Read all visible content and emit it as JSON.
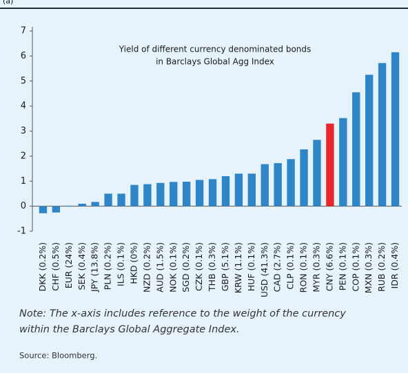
{
  "chart_data": {
    "type": "bar",
    "label": "(a)",
    "annotation": [
      "Yield of different currency denominated bonds",
      "in Barclays Global Agg Index"
    ],
    "categories": [
      "DKK (0.2%)",
      "CHF (0.5%)",
      "EUR (24%)",
      "SEK (0.4%)",
      "JPY (13.8%)",
      "PLN (0.2%)",
      "ILS (0.1%)",
      "HKD (0%)",
      "NZD (0.2%)",
      "AUD (1.5%)",
      "NOK (0.1%)",
      "SGD (0.2%)",
      "CZK (0.1%)",
      "THB (0.3%)",
      "GBP (5.1%)",
      "KRW (1.1%)",
      "HUF (0.1%)",
      "USD (41.3%)",
      "CAD (2.7%)",
      "CLP (0.1%)",
      "RON (0.1%)",
      "MYR (0.3%)",
      "CNY (6.6%)",
      "PEN (0.1%)",
      "COP (0.1%)",
      "MXN (0.3%)",
      "RUB (0.2%)",
      "IDR (0.4%)"
    ],
    "values": [
      -0.28,
      -0.25,
      0.02,
      0.1,
      0.17,
      0.5,
      0.5,
      0.85,
      0.88,
      0.93,
      0.97,
      0.98,
      1.05,
      1.08,
      1.2,
      1.3,
      1.3,
      1.68,
      1.72,
      1.88,
      2.27,
      2.65,
      3.3,
      3.52,
      4.55,
      5.25,
      5.72,
      6.15
    ],
    "colors": [
      "#2e86c8",
      "#2e86c8",
      "#2e86c8",
      "#2e86c8",
      "#2e86c8",
      "#2e86c8",
      "#2e86c8",
      "#2e86c8",
      "#2e86c8",
      "#2e86c8",
      "#2e86c8",
      "#2e86c8",
      "#2e86c8",
      "#2e86c8",
      "#2e86c8",
      "#2e86c8",
      "#2e86c8",
      "#2e86c8",
      "#2e86c8",
      "#2e86c8",
      "#2e86c8",
      "#2e86c8",
      "#e8262b",
      "#2e86c8",
      "#2e86c8",
      "#2e86c8",
      "#2e86c8",
      "#2e86c8"
    ],
    "ylim": [
      -1,
      7
    ],
    "yticks": [
      -1,
      0,
      1,
      2,
      3,
      4,
      5,
      6,
      7
    ],
    "note": [
      "Note: The x-axis includes reference to the weight of the currency",
      "within the Barclays Global Aggregate Index."
    ],
    "source": "Source: Bloomberg."
  }
}
